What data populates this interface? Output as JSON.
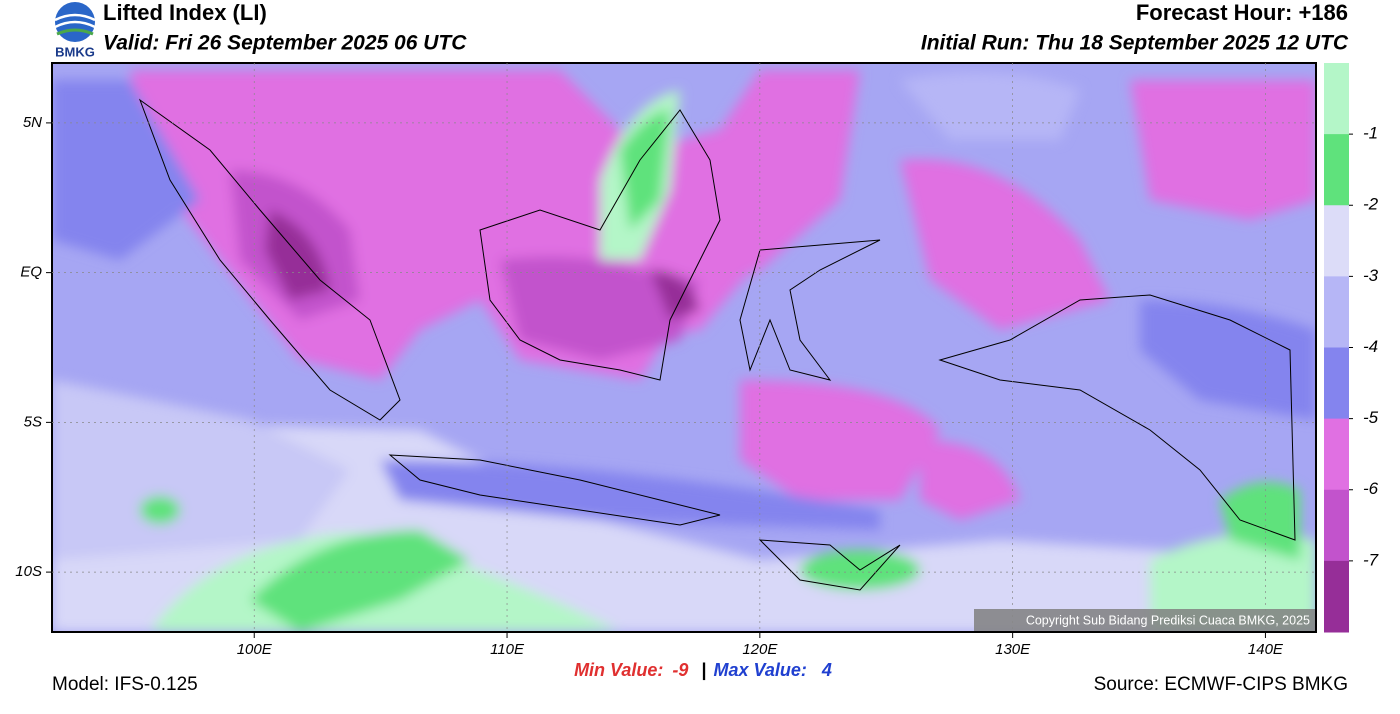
{
  "header": {
    "logo_text": "BMKG",
    "title": "Lifted Index (LI)",
    "valid": "Valid: Fri 26 September 2025 06 UTC",
    "forecast_hour": "Forecast Hour: +186",
    "initial_run": "Initial Run: Thu 18 September 2025 12 UTC"
  },
  "map": {
    "lonlim": [
      92,
      142
    ],
    "latlim": [
      7,
      -12
    ],
    "lon_ticks": [
      {
        "value": 100,
        "label": "100E"
      },
      {
        "value": 110,
        "label": "110E"
      },
      {
        "value": 120,
        "label": "120E"
      },
      {
        "value": 130,
        "label": "130E"
      },
      {
        "value": 140,
        "label": "140E"
      }
    ],
    "lat_ticks": [
      {
        "value": 5,
        "label": "5N"
      },
      {
        "value": 0,
        "label": "EQ"
      },
      {
        "value": -5,
        "label": "5S"
      },
      {
        "value": -10,
        "label": "10S"
      }
    ],
    "copyright": "Copyright Sub Bidang Prediksi Cuaca BMKG, 2025"
  },
  "colorbar": {
    "range": [
      0,
      -8
    ],
    "ticks": [
      -1,
      -2,
      -3,
      -4,
      -5,
      -6,
      -7
    ],
    "colors": [
      "#b4f6c8",
      "#5fe27c",
      "#dcdcf8",
      "#b6b6f6",
      "#8484ee",
      "#e070e2",
      "#c253cc",
      "#962e98"
    ]
  },
  "footer": {
    "model": "Model: IFS-0.125",
    "min_label": "Min Value:",
    "min_value": -9,
    "separator": "|",
    "max_label": "Max Value:",
    "max_value": 4,
    "source": "Source: ECMWF-CIPS BMKG"
  }
}
